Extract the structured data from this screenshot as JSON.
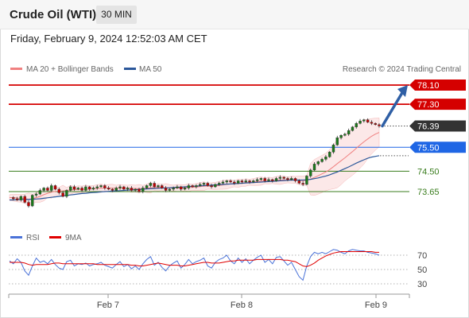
{
  "header": {
    "title": "Crude Oil (WTI)",
    "timeframe": "30 MIN",
    "datetime": "Friday, February 9, 2024 12:52:03 AM CET"
  },
  "legend": {
    "ma_bb": "MA 20 + Bollinger Bands",
    "ma50": "MA 50",
    "credit": "Research © 2024 Trading Central",
    "ma_bb_color": "#f08080",
    "ma50_color": "#2b579a"
  },
  "rsi_legend": {
    "rsi": "RSI",
    "ma9": "9MA",
    "rsi_color": "#4a72d8",
    "ma9_color": "#e00000"
  },
  "chart_data": {
    "type": "candlestick",
    "instrument": "Crude Oil (WTI)",
    "interval": "30 MIN",
    "ylim": [
      73.1,
      78.4
    ],
    "x_ticks": [
      "Feb 7",
      "Feb 8",
      "Feb 9"
    ],
    "levels": [
      {
        "label": "78.10",
        "value": 78.1,
        "kind": "target",
        "color": "#d50000"
      },
      {
        "label": "77.30",
        "value": 77.3,
        "kind": "resistance",
        "color": "#d50000"
      },
      {
        "label": "76.39",
        "value": 76.39,
        "kind": "last",
        "color": "#333333"
      },
      {
        "label": "75.50",
        "value": 75.5,
        "kind": "pivot",
        "color": "#1f66e5"
      },
      {
        "label": "74.50",
        "value": 74.5,
        "kind": "support",
        "color": "#3a7d1e"
      },
      {
        "label": "73.65",
        "value": 73.65,
        "kind": "support",
        "color": "#3a7d1e"
      }
    ],
    "projection": {
      "from": 76.39,
      "to": 78.1,
      "color": "#2f5fa5"
    },
    "price_trace": [
      73.4,
      73.35,
      73.3,
      73.45,
      73.2,
      73.05,
      73.5,
      73.55,
      73.7,
      73.8,
      73.7,
      73.9,
      73.75,
      73.6,
      73.45,
      73.7,
      73.85,
      73.75,
      73.8,
      73.7,
      73.85,
      73.75,
      73.8,
      73.85,
      73.9,
      73.8,
      73.75,
      73.7,
      73.8,
      73.85,
      73.75,
      73.8,
      73.7,
      73.75,
      73.65,
      73.8,
      73.9,
      74.0,
      73.85,
      73.9,
      73.8,
      73.7,
      73.75,
      73.8,
      73.85,
      73.75,
      73.8,
      73.9,
      73.85,
      73.9,
      73.95,
      74.0,
      73.9,
      73.85,
      73.95,
      74.0,
      74.05,
      74.1,
      74.05,
      74.0,
      74.1,
      74.05,
      74.1,
      74.05,
      74.1,
      74.15,
      74.2,
      74.1,
      74.15,
      74.1,
      74.2,
      74.25,
      74.2,
      74.15,
      74.2,
      74.1,
      74.0,
      73.95,
      74.3,
      74.55,
      74.8,
      74.9,
      75.0,
      75.1,
      75.3,
      75.6,
      75.9,
      76.0,
      76.05,
      76.2,
      76.35,
      76.5,
      76.6,
      76.65,
      76.55,
      76.5,
      76.45,
      76.39
    ],
    "ma20_trace": [
      73.4,
      73.4,
      73.38,
      73.37,
      73.35,
      73.33,
      73.35,
      73.4,
      73.45,
      73.52,
      73.58,
      73.63,
      73.66,
      73.67,
      73.68,
      73.7,
      73.72,
      73.73,
      73.74,
      73.74,
      73.75,
      73.76,
      73.77,
      73.78,
      73.79,
      73.8,
      73.8,
      73.79,
      73.79,
      73.8,
      73.79,
      73.79,
      73.78,
      73.78,
      73.77,
      73.78,
      73.79,
      73.81,
      73.82,
      73.83,
      73.82,
      73.81,
      73.8,
      73.8,
      73.8,
      73.8,
      73.81,
      73.82,
      73.83,
      73.84,
      73.86,
      73.88,
      73.88,
      73.88,
      73.89,
      73.91,
      73.93,
      73.95,
      73.97,
      73.98,
      74.0,
      74.01,
      74.03,
      74.04,
      74.05,
      74.07,
      74.09,
      74.1,
      74.11,
      74.11,
      74.12,
      74.13,
      74.14,
      74.14,
      74.15,
      74.14,
      74.12,
      74.1,
      74.12,
      74.17,
      74.24,
      74.31,
      74.39,
      74.47,
      74.57,
      74.69,
      74.82,
      74.94,
      75.06,
      75.19,
      75.32,
      75.46,
      75.6,
      75.73,
      75.85,
      75.96,
      76.05,
      76.12
    ],
    "ma50_trace": [
      73.3,
      73.3,
      73.31,
      73.31,
      73.32,
      73.32,
      73.33,
      73.34,
      73.35,
      73.37,
      73.39,
      73.41,
      73.43,
      73.45,
      73.47,
      73.49,
      73.51,
      73.53,
      73.55,
      73.57,
      73.58,
      73.6,
      73.61,
      73.62,
      73.64,
      73.65,
      73.66,
      73.67,
      73.68,
      73.69,
      73.7,
      73.71,
      73.72,
      73.73,
      73.74,
      73.75,
      73.76,
      73.77,
      73.78,
      73.79,
      73.8,
      73.8,
      73.81,
      73.82,
      73.83,
      73.84,
      73.85,
      73.86,
      73.87,
      73.88,
      73.89,
      73.9,
      73.91,
      73.92,
      73.93,
      73.94,
      73.95,
      73.96,
      73.97,
      73.98,
      73.99,
      74.0,
      74.01,
      74.02,
      74.03,
      74.04,
      74.05,
      74.06,
      74.07,
      74.08,
      74.09,
      74.1,
      74.11,
      74.12,
      74.13,
      74.13,
      74.13,
      74.13,
      74.14,
      74.16,
      74.19,
      74.22,
      74.26,
      74.3,
      74.35,
      74.41,
      74.47,
      74.54,
      74.61,
      74.68,
      74.76,
      74.84,
      74.91,
      74.98,
      75.04,
      75.09,
      75.12,
      75.15
    ],
    "rsi": {
      "levels": [
        70,
        50,
        30
      ],
      "ylim": [
        20,
        80
      ],
      "rsi_trace": [
        62,
        58,
        65,
        60,
        48,
        42,
        55,
        66,
        60,
        62,
        58,
        64,
        57,
        52,
        50,
        61,
        63,
        55,
        58,
        57,
        59,
        55,
        57,
        58,
        60,
        56,
        54,
        52,
        57,
        61,
        54,
        57,
        51,
        55,
        50,
        58,
        64,
        68,
        56,
        60,
        53,
        48,
        55,
        59,
        62,
        52,
        57,
        64,
        58,
        61,
        63,
        66,
        55,
        52,
        60,
        64,
        66,
        70,
        62,
        58,
        66,
        60,
        65,
        58,
        63,
        67,
        70,
        60,
        64,
        58,
        67,
        68,
        62,
        56,
        60,
        50,
        40,
        35,
        55,
        68,
        74,
        72,
        74,
        72,
        75,
        78,
        77,
        74,
        72,
        76,
        78,
        77,
        76,
        76,
        74,
        73,
        72,
        70
      ],
      "ma9_trace": [
        60,
        60,
        60,
        60,
        59,
        57,
        56,
        57,
        57,
        57,
        57,
        58,
        59,
        59,
        58,
        58,
        58,
        58,
        58,
        58,
        58,
        58,
        58,
        57,
        57,
        57,
        57,
        57,
        57,
        57,
        57,
        57,
        56,
        56,
        55,
        55,
        56,
        57,
        58,
        59,
        58,
        57,
        56,
        56,
        56,
        55,
        55,
        56,
        57,
        58,
        59,
        60,
        60,
        59,
        59,
        59,
        60,
        61,
        62,
        62,
        63,
        63,
        63,
        63,
        63,
        64,
        64,
        64,
        64,
        64,
        64,
        64,
        63,
        63,
        62,
        61,
        58,
        55,
        54,
        56,
        59,
        63,
        66,
        69,
        71,
        73,
        74,
        75,
        75,
        75,
        75,
        75,
        75,
        75,
        75,
        75,
        74,
        74
      ]
    }
  }
}
